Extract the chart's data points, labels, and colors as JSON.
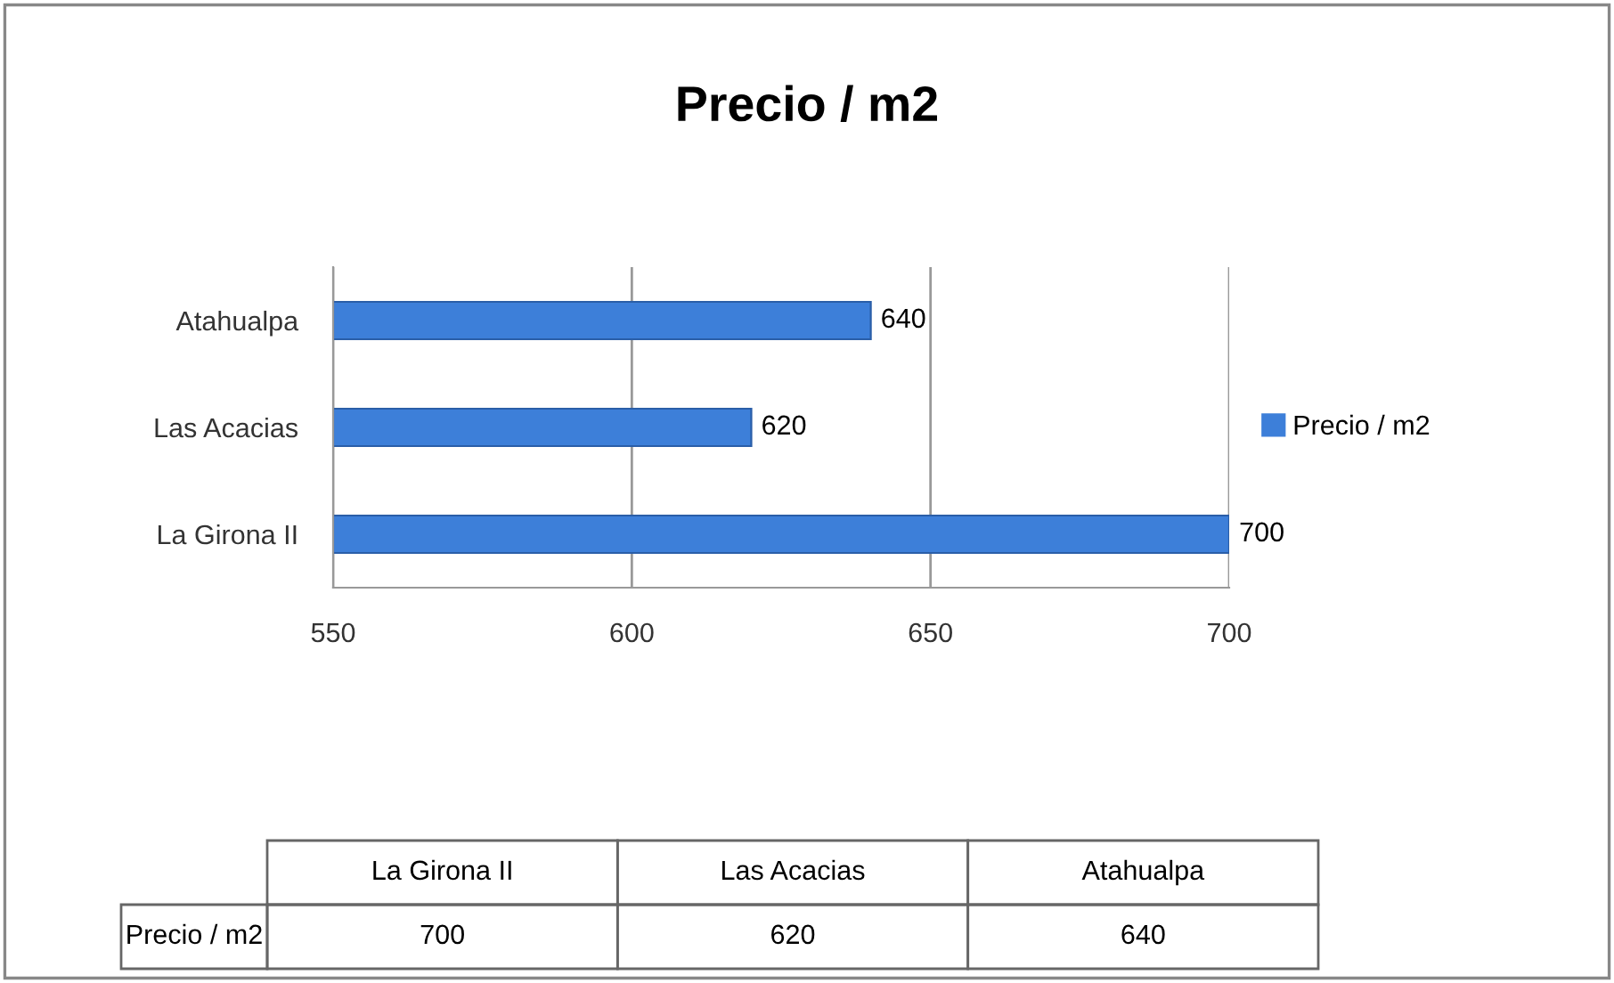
{
  "chart_data": {
    "type": "bar",
    "orientation": "horizontal",
    "title": "Precio / m2",
    "categories": [
      "Atahualpa",
      "Las Acacias",
      "La Girona II"
    ],
    "series": [
      {
        "name": "Precio / m2",
        "color": "#3d7fd9",
        "values": [
          640,
          620,
          700
        ],
        "value_labels": [
          "640",
          "620",
          "700"
        ]
      }
    ],
    "annotations": [
      "700",
      "620",
      "640"
    ],
    "xlim": [
      550,
      700
    ],
    "xticks": [
      550,
      600,
      650,
      700
    ],
    "grid": "x",
    "legend": "right"
  }
}
